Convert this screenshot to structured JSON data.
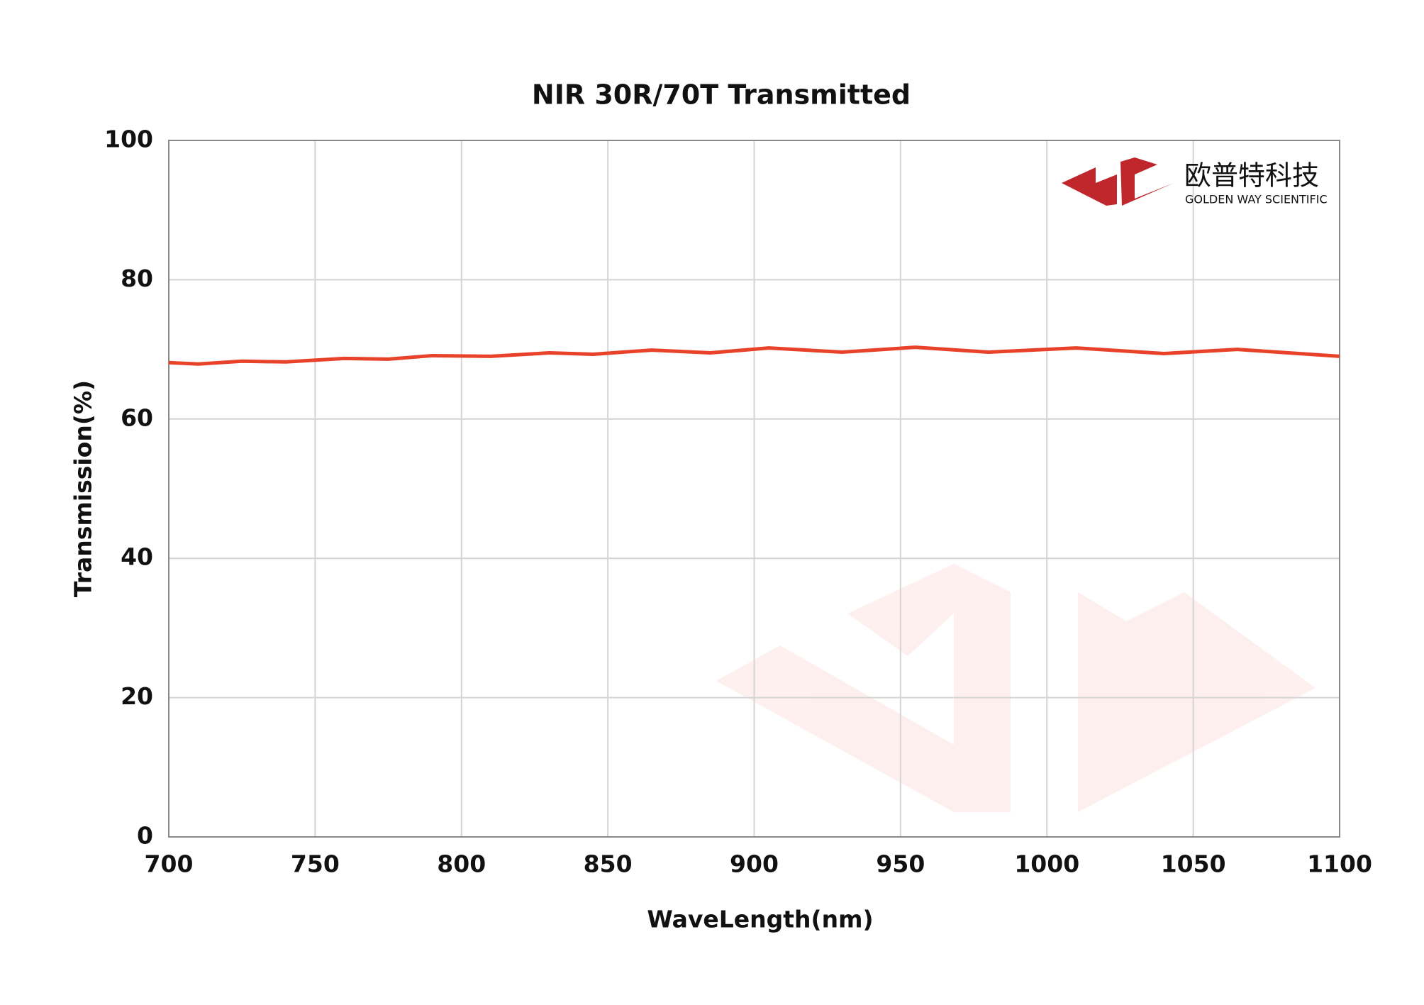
{
  "chart_data": {
    "type": "line",
    "title": "NIR 30R/70T Transmitted",
    "x_label": "WaveLength(nm)",
    "y_label": "Transmission(%)",
    "x": [
      700,
      710,
      725,
      740,
      760,
      775,
      790,
      810,
      830,
      845,
      865,
      885,
      905,
      930,
      955,
      980,
      1010,
      1040,
      1065,
      1100
    ],
    "series": [
      {
        "name": "Transmitted",
        "color": "#e8432a",
        "values": [
          68.1,
          67.9,
          68.3,
          68.2,
          68.7,
          68.6,
          69.1,
          69.0,
          69.5,
          69.3,
          69.9,
          69.5,
          70.2,
          69.6,
          70.3,
          69.6,
          70.2,
          69.4,
          70.0,
          69.0
        ]
      }
    ],
    "xlim": [
      700,
      1100
    ],
    "xticks": [
      700,
      750,
      800,
      850,
      900,
      950,
      1000,
      1050,
      1100
    ],
    "ylim": [
      0,
      100
    ],
    "yticks": [
      0,
      20,
      40,
      60,
      80,
      100
    ],
    "grid": true
  },
  "logo": {
    "name": "欧普特科技",
    "tagline": "GOLDEN WAY SCIENTIFIC"
  }
}
